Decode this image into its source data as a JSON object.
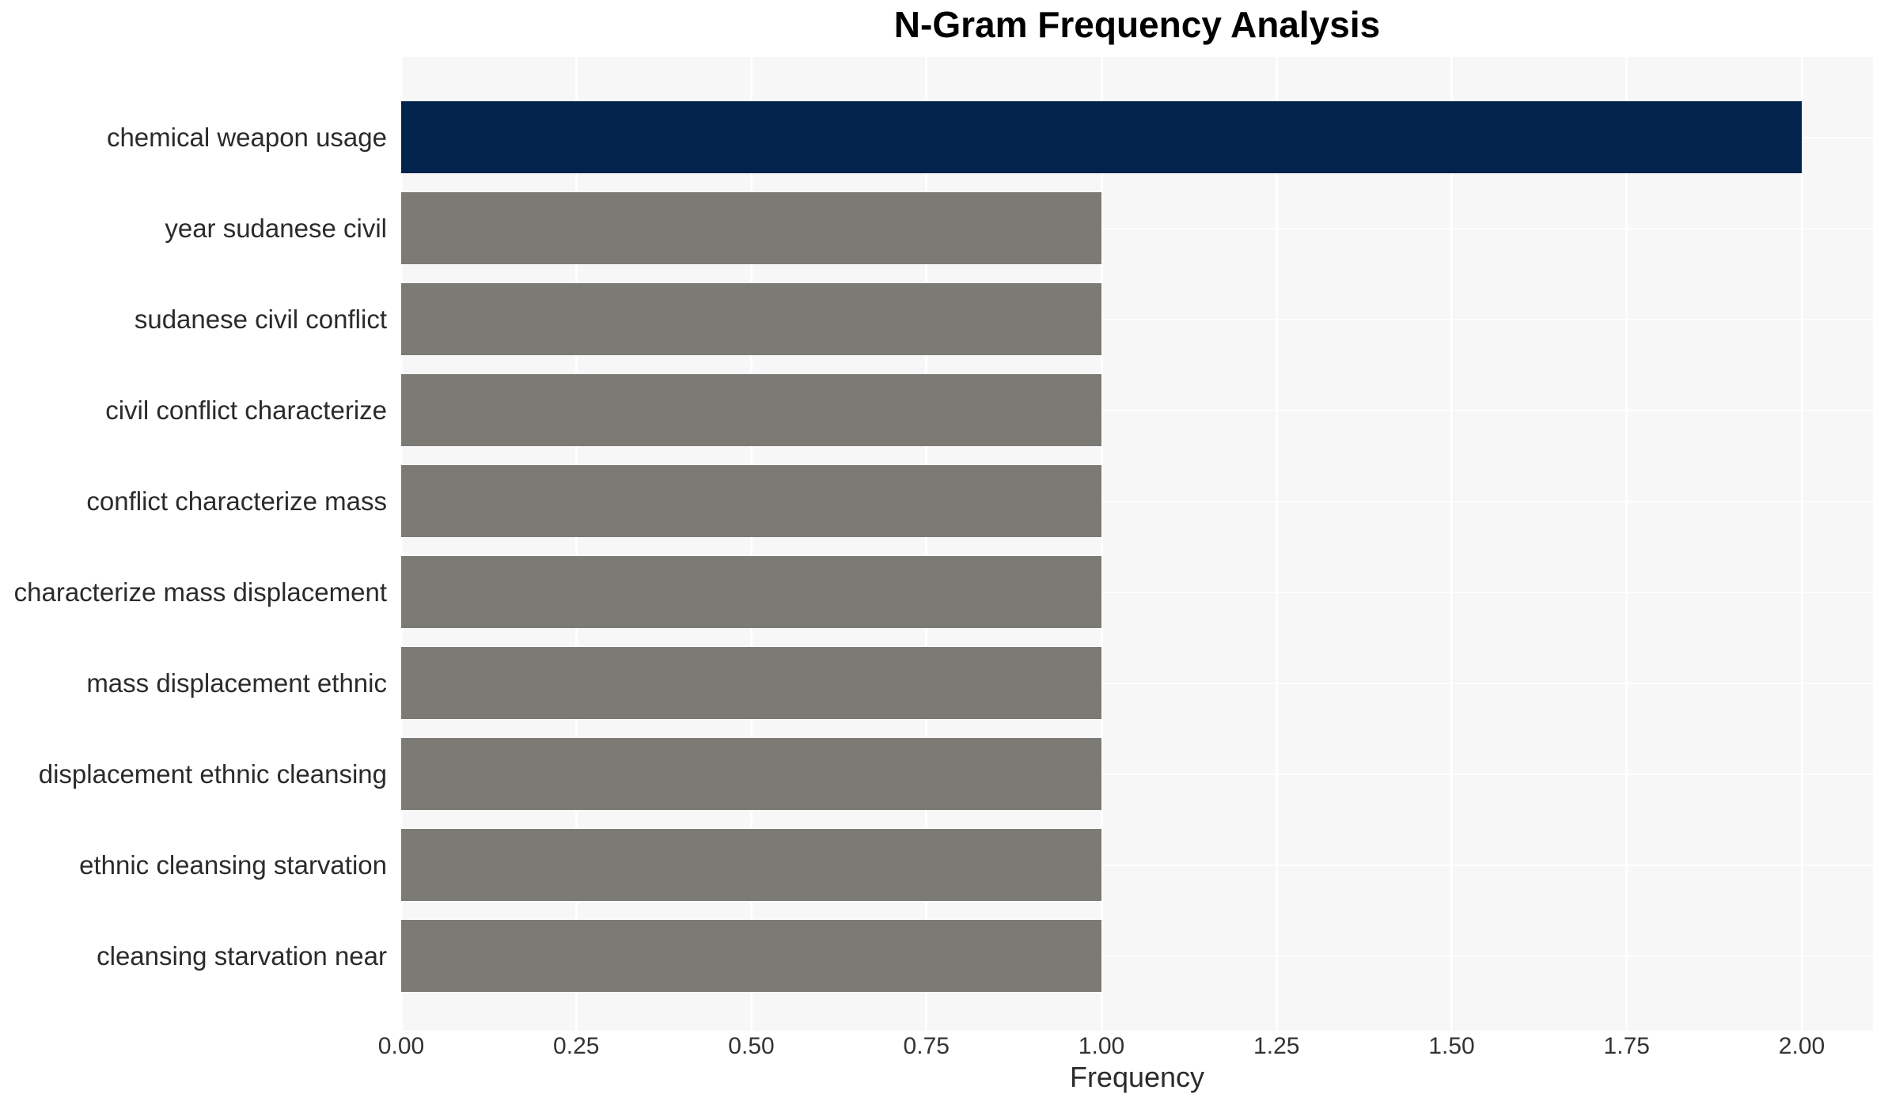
{
  "title": "N-Gram Frequency Analysis",
  "chart_data": {
    "type": "bar",
    "orientation": "horizontal",
    "title": "N-Gram Frequency Analysis",
    "xlabel": "Frequency",
    "ylabel": "",
    "categories": [
      "chemical weapon usage",
      "year sudanese civil",
      "sudanese civil conflict",
      "civil conflict characterize",
      "conflict characterize mass",
      "characterize mass displacement",
      "mass displacement ethnic",
      "displacement ethnic cleansing",
      "ethnic cleansing starvation",
      "cleansing starvation near"
    ],
    "values": [
      2,
      1,
      1,
      1,
      1,
      1,
      1,
      1,
      1,
      1
    ],
    "xlim": [
      0,
      2.1
    ],
    "xtick_values": [
      0,
      0.25,
      0.5,
      0.75,
      1.0,
      1.25,
      1.5,
      1.75,
      2.0
    ],
    "xtick_labels": [
      "0.00",
      "0.25",
      "0.50",
      "0.75",
      "1.00",
      "1.25",
      "1.50",
      "1.75",
      "2.00"
    ],
    "grid": true,
    "legend_position": "none",
    "colors": {
      "highlight_bar": "#02234c",
      "default_bar": "#7b7a75",
      "plot_background": "#f7f7f7",
      "gridline": "#ffffff",
      "axis_text": "#333333",
      "label_text": "#2b2b2b",
      "title_text": "#000000"
    }
  }
}
